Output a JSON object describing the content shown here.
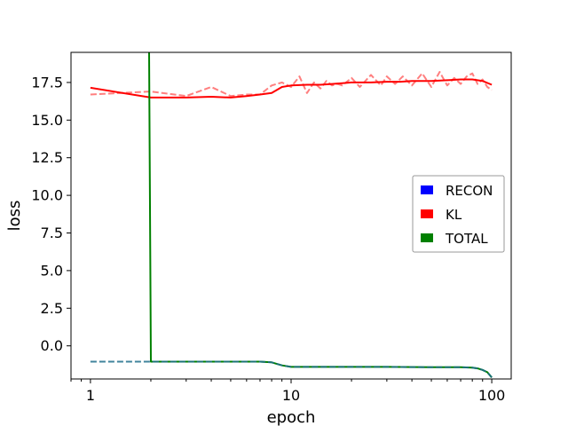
{
  "chart_data": {
    "type": "line",
    "title": "",
    "xlabel": "epoch",
    "ylabel": "loss",
    "xscale": "log",
    "xlim": [
      0.8,
      125
    ],
    "ylim": [
      -2.2,
      19.5
    ],
    "xticks": [
      1,
      10,
      100
    ],
    "xtick_labels": [
      "1",
      "10",
      "100"
    ],
    "yticks": [
      0.0,
      2.5,
      5.0,
      7.5,
      10.0,
      12.5,
      15.0,
      17.5
    ],
    "ytick_labels": [
      "0.0",
      "2.5",
      "5.0",
      "7.5",
      "10.0",
      "12.5",
      "15.0",
      "17.5"
    ],
    "grid": false,
    "legend_position": "center-right",
    "legend": [
      {
        "name": "RECON",
        "color": "#0000ff"
      },
      {
        "name": "KL",
        "color": "#ff0000"
      },
      {
        "name": "TOTAL",
        "color": "#008000"
      }
    ],
    "series": [
      {
        "name": "KL",
        "style": "dashed",
        "color": "#ff0000",
        "opacity": 0.5,
        "x": [
          1,
          2,
          3,
          4,
          5,
          6,
          7,
          8,
          9,
          10,
          11,
          12,
          13,
          14,
          15,
          16,
          17,
          18,
          20,
          22,
          25,
          28,
          30,
          33,
          36,
          40,
          45,
          50,
          55,
          60,
          65,
          70,
          75,
          80,
          85,
          90,
          95,
          100
        ],
        "values": [
          16.7,
          16.9,
          16.6,
          17.2,
          16.6,
          16.7,
          16.7,
          17.3,
          17.5,
          17.2,
          17.9,
          16.8,
          17.5,
          17.1,
          17.6,
          17.3,
          17.4,
          17.3,
          17.8,
          17.2,
          18.0,
          17.3,
          17.9,
          17.4,
          17.9,
          17.3,
          18.1,
          17.2,
          18.2,
          17.3,
          17.8,
          17.4,
          17.9,
          18.1,
          17.4,
          17.7,
          17.2,
          17.0
        ]
      },
      {
        "name": "KL",
        "style": "solid",
        "color": "#ff0000",
        "opacity": 1,
        "x": [
          1,
          2,
          3,
          4,
          5,
          6,
          7,
          8,
          9,
          10,
          12,
          14,
          16,
          18,
          20,
          25,
          30,
          35,
          40,
          50,
          60,
          70,
          80,
          90,
          100
        ],
        "values": [
          17.15,
          16.5,
          16.5,
          16.55,
          16.5,
          16.6,
          16.7,
          16.8,
          17.2,
          17.3,
          17.35,
          17.35,
          17.4,
          17.45,
          17.5,
          17.5,
          17.55,
          17.55,
          17.6,
          17.6,
          17.65,
          17.7,
          17.7,
          17.6,
          17.35
        ]
      },
      {
        "name": "TOTAL",
        "style": "solid",
        "color": "#008000",
        "opacity": 1,
        "x": [
          1.96,
          2.0,
          3,
          5,
          7,
          8,
          9,
          10,
          15,
          20,
          30,
          50,
          70,
          80,
          85,
          90,
          95,
          100
        ],
        "values": [
          19.5,
          -1.05,
          -1.05,
          -1.05,
          -1.05,
          -1.1,
          -1.3,
          -1.4,
          -1.4,
          -1.4,
          -1.4,
          -1.42,
          -1.42,
          -1.45,
          -1.5,
          -1.6,
          -1.75,
          -2.1
        ]
      },
      {
        "name": "RECON",
        "style": "dashed",
        "color": "#1f6f8b",
        "opacity": 0.85,
        "x": [
          1,
          2,
          3,
          5,
          7,
          8,
          9,
          10,
          15,
          20,
          30,
          50,
          70,
          80,
          85,
          90,
          95,
          100
        ],
        "values": [
          -1.05,
          -1.05,
          -1.05,
          -1.05,
          -1.05,
          -1.1,
          -1.3,
          -1.4,
          -1.4,
          -1.4,
          -1.4,
          -1.42,
          -1.42,
          -1.45,
          -1.5,
          -1.6,
          -1.75,
          -2.1
        ]
      }
    ]
  }
}
